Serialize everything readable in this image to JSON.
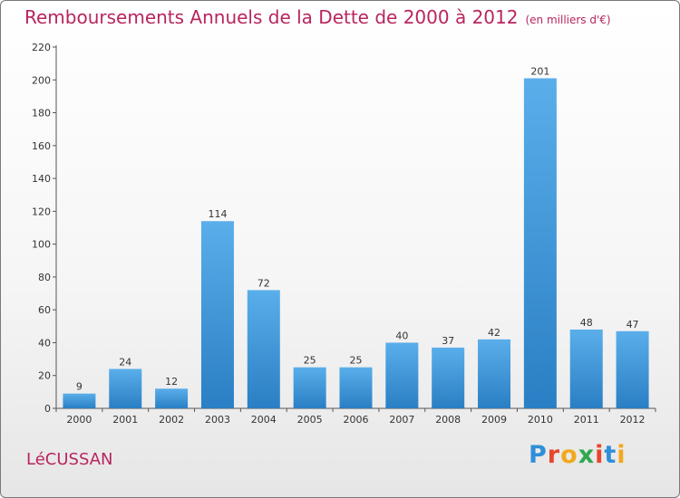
{
  "title": "Remboursements Annuels de la Dette de 2000 à 2012",
  "unit": "(en milliers d'€)",
  "town": "LéCUSSAN",
  "logo": {
    "text": "Proxiti",
    "letters": [
      {
        "ch": "P",
        "color": "#2f8fd8"
      },
      {
        "ch": "r",
        "color": "#e8452c"
      },
      {
        "ch": "o",
        "color": "#f2a81d"
      },
      {
        "ch": "x",
        "color": "#2fa84f"
      },
      {
        "ch": "i",
        "color": "#e8452c"
      },
      {
        "ch": "t",
        "color": "#2f8fd8"
      },
      {
        "ch": "i",
        "color": "#f2a81d"
      }
    ]
  },
  "colors": {
    "accent": "#b8255f",
    "bar_top": "#5aaeea",
    "bar_bottom": "#2a7fc4"
  },
  "chart_data": {
    "type": "bar",
    "title": "Remboursements Annuels de la Dette de 2000 à 2012",
    "categories": [
      "2000",
      "2001",
      "2002",
      "2003",
      "2004",
      "2005",
      "2006",
      "2007",
      "2008",
      "2009",
      "2010",
      "2011",
      "2012"
    ],
    "values": [
      9,
      24,
      12,
      114,
      72,
      25,
      25,
      40,
      37,
      42,
      201,
      48,
      47
    ],
    "ylim": [
      0,
      220
    ],
    "yticks": [
      0,
      20,
      40,
      60,
      80,
      100,
      120,
      140,
      160,
      180,
      200,
      220
    ],
    "grid": false,
    "legend": "none"
  }
}
